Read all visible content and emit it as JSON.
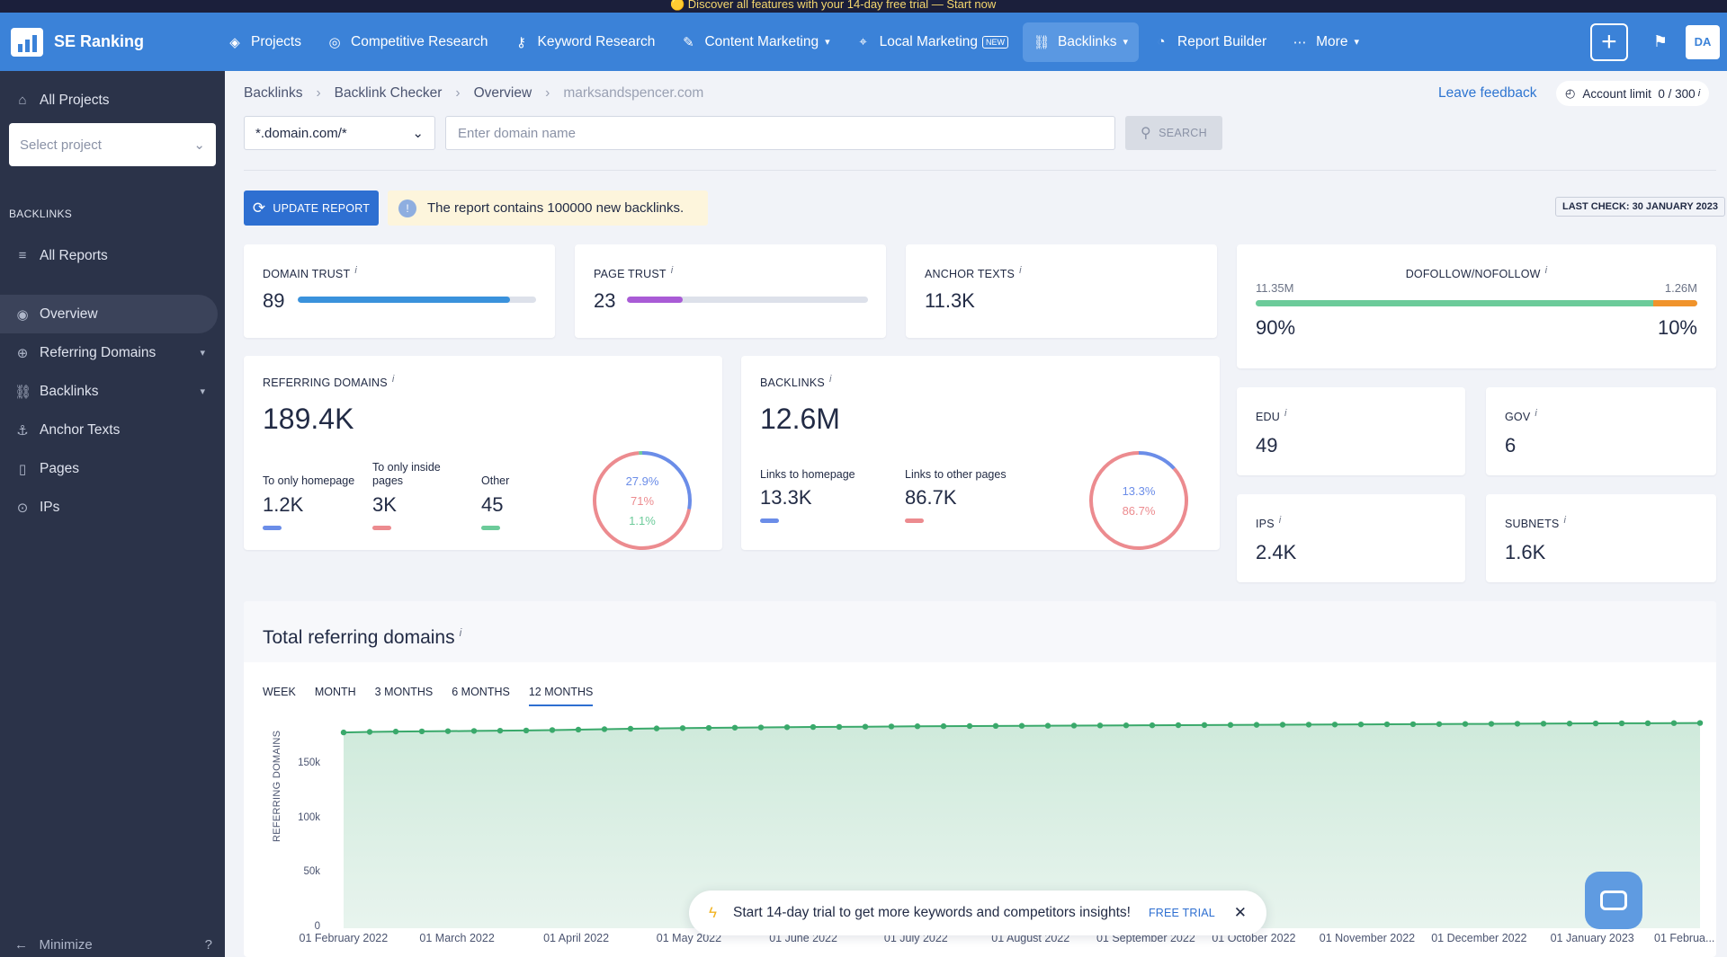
{
  "top_strip": "🟡 Discover all features with your 14-day free trial — Start now",
  "header": {
    "app_name": "SE Ranking",
    "nav": [
      {
        "label": "Projects",
        "icon": "layers-icon"
      },
      {
        "label": "Competitive Research",
        "icon": "target-icon"
      },
      {
        "label": "Keyword Research",
        "icon": "key-icon"
      },
      {
        "label": "Content Marketing",
        "icon": "edit-icon"
      },
      {
        "label": "Local Marketing",
        "icon": "pin-icon",
        "badge": "NEW"
      },
      {
        "label": "Backlinks",
        "icon": "link-icon"
      },
      {
        "label": "Report Builder",
        "icon": "pie-icon"
      },
      {
        "label": "More",
        "icon": "dots-icon"
      }
    ],
    "avatar": "DA"
  },
  "sidebar": {
    "all_projects": "All Projects",
    "select_placeholder": "Select project",
    "section": "BACKLINKS",
    "all_reports": "All Reports",
    "items": [
      "Overview",
      "Referring Domains",
      "Backlinks",
      "Anchor Texts",
      "Pages",
      "IPs"
    ],
    "minimize": "Minimize"
  },
  "toolbar": {
    "breadcrumb": [
      "Backlinks",
      "Backlink Checker",
      "Overview",
      "marksandspencer.com"
    ],
    "leave_feedback": "Leave feedback",
    "account_limit_label": "Account limit",
    "account_limit_value": "0 / 300",
    "domain_mode": "*.domain.com/*",
    "domain_placeholder": "Enter domain name",
    "search": "SEARCH",
    "update_report": "UPDATE REPORT",
    "notice": "The report contains 100000 new backlinks.",
    "last_check": "LAST CHECK: 30 JANUARY 2023"
  },
  "metrics": {
    "domain_trust": {
      "label": "DOMAIN TRUST",
      "value": "89",
      "level": 0.89,
      "color": "#3a92dc"
    },
    "page_trust": {
      "label": "PAGE TRUST",
      "value": "23",
      "level": 0.23,
      "color": "#a95bd6"
    },
    "anchor_texts": {
      "label": "ANCHOR TEXTS",
      "value": "11.3K"
    },
    "dofollow": {
      "label": "DOFOLLOW/NOFOLLOW",
      "do_count": "11.35M",
      "no_count": "1.26M",
      "do_pct": "90%",
      "no_pct": "10%",
      "do_frac": 0.9,
      "do_color": "#6ccb9a",
      "no_color": "#f0932b"
    },
    "referring_domains": {
      "label": "REFERRING DOMAINS",
      "value": "189.4K",
      "parts": [
        {
          "label": "To only homepage",
          "value": "1.2K",
          "pct": "27.9%",
          "color": "#6b8de8"
        },
        {
          "label": "To only inside pages",
          "value": "3K",
          "pct": "71%",
          "color": "#ec8b8f"
        },
        {
          "label": "Other",
          "value": "45",
          "pct": "1.1%",
          "color": "#6ccb9a"
        }
      ]
    },
    "backlinks": {
      "label": "BACKLINKS",
      "value": "12.6M",
      "parts": [
        {
          "label": "Links to homepage",
          "value": "13.3K",
          "pct": "13.3%",
          "color": "#6b8de8"
        },
        {
          "label": "Links to other pages",
          "value": "86.7K",
          "pct": "86.7%",
          "color": "#ec8b8f"
        }
      ]
    },
    "edu": {
      "label": "EDU",
      "value": "49"
    },
    "gov": {
      "label": "GOV",
      "value": "6"
    },
    "ips": {
      "label": "IPS",
      "value": "2.4K"
    },
    "subnets": {
      "label": "SUBNETS",
      "value": "1.6K"
    }
  },
  "chart_section": {
    "title": "Total referring domains",
    "tabs": [
      "WEEK",
      "MONTH",
      "3 MONTHS",
      "6 MONTHS",
      "12 MONTHS"
    ],
    "active_tab": "12 MONTHS"
  },
  "chart_data": {
    "type": "area",
    "ylabel": "REFERRING DOMAINS",
    "ylim": [
      0,
      190000
    ],
    "y_ticks": [
      "0",
      "50k",
      "100k",
      "150k"
    ],
    "y_tick_values": [
      0,
      50000,
      100000,
      150000
    ],
    "x_ticks": [
      "01 February 2022",
      "01 March 2022",
      "01 April 2022",
      "01 May 2022",
      "01 June 2022",
      "01 July 2022",
      "01 August 2022",
      "01 September 2022",
      "01 October 2022",
      "01 November 2022",
      "01 December 2022",
      "01 January 2023",
      "01 Februa..."
    ],
    "x_tick_fracs": [
      0,
      0.0835,
      0.1715,
      0.2545,
      0.339,
      0.422,
      0.5065,
      0.5915,
      0.671,
      0.7545,
      0.837,
      0.9205,
      1.0
    ],
    "series": [
      {
        "color": "#3aa96b",
        "values": [
          180000,
          180500,
          180800,
          181000,
          181200,
          181400,
          181600,
          181800,
          182200,
          182600,
          183000,
          183400,
          183700,
          184000,
          184200,
          184400,
          184600,
          184800,
          185000,
          185100,
          185300,
          185500,
          185700,
          185800,
          185900,
          186000,
          186100,
          186200,
          186300,
          186400,
          186500,
          186600,
          186700,
          186800,
          186900,
          187000,
          187100,
          187200,
          187300,
          187400,
          187500,
          187600,
          187700,
          187800,
          187900,
          188000,
          188100,
          188200,
          188300,
          188400,
          188500,
          188600,
          188700
        ]
      }
    ]
  },
  "toast": {
    "text": "Start 14-day trial to get more keywords and competitors insights!",
    "cta": "FREE TRIAL"
  }
}
